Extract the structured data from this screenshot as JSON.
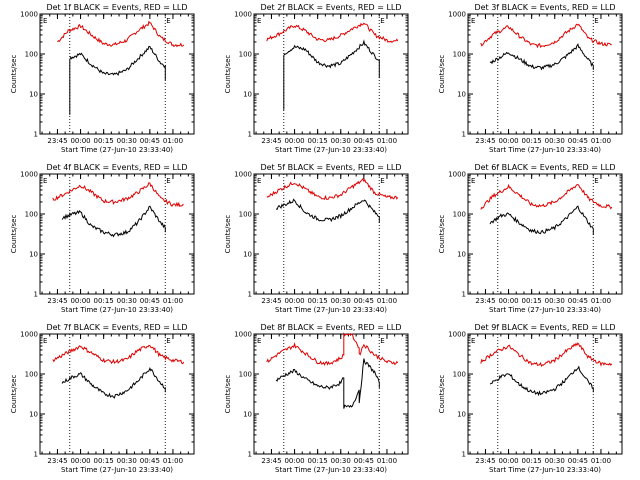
{
  "figure": {
    "colors": {
      "events": "#000000",
      "lld": "#dd0000",
      "axis": "#000000"
    }
  },
  "chart_data": [
    {
      "type": "line",
      "title": "Det 1f BLACK = Events, RED = LLD",
      "xlabel": "Start Time (27-Jun-10 23:33:40)",
      "ylabel": "Counts/sec",
      "yscale": "log",
      "ylim": [
        1,
        1000
      ],
      "x_ticks": [
        "23:45",
        "00:00",
        "00:15",
        "00:30",
        "00:45",
        "01:00"
      ],
      "y_ticks": [
        "1",
        "10",
        "100",
        "1000"
      ],
      "vlines": [
        "23:53",
        "00:55"
      ],
      "markers": [
        "E",
        "E"
      ],
      "series": [
        {
          "color": "red",
          "x": [
            "23:45",
            "23:52",
            "00:00",
            "00:07",
            "00:15",
            "00:22",
            "00:30",
            "00:37",
            "00:45",
            "00:52",
            "01:00",
            "01:07"
          ],
          "values": [
            200,
            380,
            500,
            300,
            180,
            170,
            220,
            380,
            600,
            260,
            170,
            170
          ]
        },
        {
          "color": "black",
          "x": [
            "23:53",
            "23:53",
            "00:00",
            "00:07",
            "00:15",
            "00:22",
            "00:30",
            "00:37",
            "00:45",
            "00:52",
            "00:55",
            "00:55"
          ],
          "values": [
            3,
            80,
            100,
            55,
            32,
            30,
            40,
            75,
            150,
            60,
            50,
            22
          ]
        }
      ]
    },
    {
      "type": "line",
      "title": "Det 2f BLACK = Events, RED = LLD",
      "xlabel": "Start Time (27-Jun-10 23:33:40)",
      "ylabel": "Counts/sec",
      "yscale": "log",
      "ylim": [
        1,
        1000
      ],
      "x_ticks": [
        "23:45",
        "00:00",
        "00:15",
        "00:30",
        "00:45",
        "01:00"
      ],
      "y_ticks": [
        "1",
        "10",
        "100",
        "1000"
      ],
      "vlines": [
        "23:53",
        "00:55"
      ],
      "markers": [
        "E",
        "E"
      ],
      "series": [
        {
          "color": "red",
          "x": [
            "23:42",
            "23:50",
            "00:00",
            "00:07",
            "00:15",
            "00:22",
            "00:30",
            "00:37",
            "00:45",
            "00:52",
            "01:00",
            "01:07"
          ],
          "values": [
            230,
            320,
            520,
            380,
            230,
            220,
            290,
            420,
            610,
            300,
            220,
            210
          ]
        },
        {
          "color": "black",
          "x": [
            "23:53",
            "23:53",
            "00:00",
            "00:07",
            "00:15",
            "00:22",
            "00:30",
            "00:37",
            "00:45",
            "00:52",
            "00:55",
            "00:55"
          ],
          "values": [
            4,
            100,
            150,
            130,
            62,
            50,
            58,
            100,
            190,
            90,
            70,
            25
          ]
        }
      ]
    },
    {
      "type": "line",
      "title": "Det 3f BLACK = Events, RED = LLD",
      "xlabel": "Start Time (27-Jun-10 23:33:40)",
      "ylabel": "Counts/sec",
      "yscale": "log",
      "ylim": [
        1,
        1000
      ],
      "x_ticks": [
        "23:45",
        "00:00",
        "00:15",
        "00:30",
        "00:45",
        "01:00"
      ],
      "y_ticks": [
        "1",
        "10",
        "100",
        "1000"
      ],
      "vlines": [
        "23:53",
        "00:55"
      ],
      "markers": [
        "E",
        "E"
      ],
      "series": [
        {
          "color": "red",
          "x": [
            "23:42",
            "23:50",
            "00:00",
            "00:07",
            "00:15",
            "00:22",
            "00:30",
            "00:37",
            "00:45",
            "00:52",
            "01:00",
            "01:07"
          ],
          "values": [
            170,
            310,
            480,
            280,
            170,
            160,
            200,
            330,
            560,
            240,
            180,
            170
          ]
        },
        {
          "color": "black",
          "x": [
            "23:48",
            "23:55",
            "00:00",
            "00:07",
            "00:15",
            "00:22",
            "00:30",
            "00:37",
            "00:45",
            "00:52",
            "00:55",
            "00:55"
          ],
          "values": [
            60,
            85,
            110,
            75,
            48,
            45,
            55,
            85,
            160,
            70,
            50,
            40
          ]
        }
      ]
    },
    {
      "type": "line",
      "title": "Det 4f BLACK = Events, RED = LLD",
      "xlabel": "Start Time (27-Jun-10 23:33:40)",
      "ylabel": "Counts/sec",
      "yscale": "log",
      "ylim": [
        1,
        1000
      ],
      "x_ticks": [
        "23:45",
        "00:00",
        "00:15",
        "00:30",
        "00:45",
        "01:00"
      ],
      "y_ticks": [
        "1",
        "10",
        "100",
        "1000"
      ],
      "vlines": [
        "23:53",
        "00:55"
      ],
      "markers": [
        "E",
        "E"
      ],
      "series": [
        {
          "color": "red",
          "x": [
            "23:42",
            "23:50",
            "00:00",
            "00:07",
            "00:15",
            "00:22",
            "00:30",
            "00:37",
            "00:45",
            "00:52",
            "01:00",
            "01:07"
          ],
          "values": [
            230,
            320,
            520,
            350,
            210,
            200,
            240,
            340,
            580,
            240,
            170,
            170
          ]
        },
        {
          "color": "black",
          "x": [
            "23:48",
            "23:55",
            "00:00",
            "00:07",
            "00:15",
            "00:22",
            "00:30",
            "00:37",
            "00:45",
            "00:52",
            "00:55",
            "00:55"
          ],
          "values": [
            80,
            100,
            110,
            50,
            35,
            30,
            35,
            60,
            150,
            60,
            45,
            35
          ]
        }
      ]
    },
    {
      "type": "line",
      "title": "Det 5f BLACK = Events, RED = LLD",
      "xlabel": "Start Time (27-Jun-10 23:33:40)",
      "ylabel": "Counts/sec",
      "yscale": "log",
      "ylim": [
        1,
        1000
      ],
      "x_ticks": [
        "23:45",
        "00:00",
        "00:15",
        "00:30",
        "00:45",
        "01:00"
      ],
      "y_ticks": [
        "1",
        "10",
        "100",
        "1000"
      ],
      "vlines": [
        "23:53",
        "00:55"
      ],
      "markers": [
        "E",
        "E"
      ],
      "series": [
        {
          "color": "red",
          "x": [
            "23:42",
            "23:50",
            "00:00",
            "00:07",
            "00:15",
            "00:22",
            "00:30",
            "00:37",
            "00:45",
            "00:52",
            "01:00",
            "01:07"
          ],
          "values": [
            260,
            400,
            620,
            420,
            270,
            250,
            300,
            470,
            720,
            340,
            260,
            260
          ]
        },
        {
          "color": "black",
          "x": [
            "23:48",
            "23:55",
            "00:00",
            "00:07",
            "00:15",
            "00:22",
            "00:30",
            "00:37",
            "00:45",
            "00:52",
            "00:55",
            "00:55"
          ],
          "values": [
            140,
            180,
            220,
            110,
            75,
            70,
            90,
            140,
            230,
            110,
            85,
            60
          ]
        }
      ]
    },
    {
      "type": "line",
      "title": "Det 6f BLACK = Events, RED = LLD",
      "xlabel": "Start Time (27-Jun-10 23:33:40)",
      "ylabel": "Counts/sec",
      "yscale": "log",
      "ylim": [
        1,
        1000
      ],
      "x_ticks": [
        "23:45",
        "00:00",
        "00:15",
        "00:30",
        "00:45",
        "01:00"
      ],
      "y_ticks": [
        "1",
        "10",
        "100",
        "1000"
      ],
      "vlines": [
        "23:53",
        "00:55"
      ],
      "markers": [
        "E",
        "E"
      ],
      "series": [
        {
          "color": "red",
          "x": [
            "23:42",
            "23:50",
            "00:00",
            "00:07",
            "00:15",
            "00:22",
            "00:30",
            "00:37",
            "00:45",
            "00:52",
            "01:00",
            "01:07"
          ],
          "values": [
            140,
            280,
            480,
            300,
            170,
            160,
            200,
            320,
            560,
            240,
            160,
            150
          ]
        },
        {
          "color": "black",
          "x": [
            "23:48",
            "23:55",
            "00:00",
            "00:07",
            "00:15",
            "00:22",
            "00:30",
            "00:37",
            "00:45",
            "00:52",
            "00:55",
            "00:55"
          ],
          "values": [
            60,
            90,
            100,
            60,
            38,
            35,
            45,
            75,
            150,
            60,
            42,
            30
          ]
        }
      ]
    },
    {
      "type": "line",
      "title": "Det 7f BLACK = Events, RED = LLD",
      "xlabel": "Start Time (27-Jun-10 23:33:40)",
      "ylabel": "Counts/sec",
      "yscale": "log",
      "ylim": [
        1,
        1000
      ],
      "x_ticks": [
        "23:45",
        "00:00",
        "00:15",
        "00:30",
        "00:45",
        "01:00"
      ],
      "y_ticks": [
        "1",
        "10",
        "100",
        "1000"
      ],
      "vlines": [
        "23:53",
        "00:55"
      ],
      "markers": [
        "E",
        "E"
      ],
      "series": [
        {
          "color": "red",
          "x": [
            "23:42",
            "23:50",
            "00:00",
            "00:07",
            "00:15",
            "00:22",
            "00:30",
            "00:37",
            "00:45",
            "00:52",
            "01:00",
            "01:07"
          ],
          "values": [
            220,
            320,
            500,
            340,
            220,
            200,
            230,
            380,
            540,
            280,
            220,
            200
          ]
        },
        {
          "color": "black",
          "x": [
            "23:48",
            "23:55",
            "00:00",
            "00:07",
            "00:15",
            "00:22",
            "00:30",
            "00:37",
            "00:45",
            "00:52",
            "00:55",
            "00:55"
          ],
          "values": [
            60,
            85,
            100,
            55,
            32,
            28,
            38,
            65,
            140,
            60,
            45,
            35
          ]
        }
      ]
    },
    {
      "type": "line",
      "title": "Det 8f BLACK = Events, RED = LLD",
      "xlabel": "Start Time (27-Jun-10 23:33:40)",
      "ylabel": "Counts/sec",
      "yscale": "log",
      "ylim": [
        1,
        1000
      ],
      "x_ticks": [
        "23:45",
        "00:00",
        "00:15",
        "00:30",
        "00:45",
        "01:00"
      ],
      "y_ticks": [
        "1",
        "10",
        "100",
        "1000"
      ],
      "vlines": [
        "23:53",
        "00:55"
      ],
      "markers": [
        "E",
        "E"
      ],
      "series": [
        {
          "color": "red",
          "x": [
            "23:42",
            "23:50",
            "00:00",
            "00:07",
            "00:15",
            "00:22",
            "00:30",
            "00:32",
            "00:32",
            "00:37",
            "00:42",
            "00:42",
            "00:45",
            "00:52",
            "01:00",
            "01:07"
          ],
          "values": [
            200,
            330,
            520,
            330,
            200,
            180,
            250,
            300,
            1000,
            1000,
            450,
            300,
            550,
            300,
            200,
            190
          ]
        },
        {
          "color": "black",
          "x": [
            "23:48",
            "23:55",
            "00:00",
            "00:07",
            "00:15",
            "00:22",
            "00:30",
            "00:32",
            "00:32",
            "00:37",
            "00:42",
            "00:42",
            "00:45",
            "00:52",
            "00:55",
            "00:55"
          ],
          "values": [
            70,
            100,
            120,
            75,
            50,
            45,
            60,
            80,
            15,
            15,
            40,
            20,
            220,
            110,
            60,
            45
          ]
        }
      ]
    },
    {
      "type": "line",
      "title": "Det 9f BLACK = Events, RED = LLD",
      "xlabel": "Start Time (27-Jun-10 23:33:40)",
      "ylabel": "Counts/sec",
      "yscale": "log",
      "ylim": [
        1,
        1000
      ],
      "x_ticks": [
        "23:45",
        "00:00",
        "00:15",
        "00:30",
        "00:45",
        "01:00"
      ],
      "y_ticks": [
        "1",
        "10",
        "100",
        "1000"
      ],
      "vlines": [
        "23:53",
        "00:55"
      ],
      "markers": [
        "E",
        "E"
      ],
      "series": [
        {
          "color": "red",
          "x": [
            "23:42",
            "23:50",
            "00:00",
            "00:07",
            "00:15",
            "00:22",
            "00:30",
            "00:37",
            "00:45",
            "00:52",
            "01:00",
            "01:07"
          ],
          "values": [
            200,
            330,
            500,
            300,
            180,
            170,
            220,
            360,
            580,
            260,
            180,
            180
          ]
        },
        {
          "color": "black",
          "x": [
            "23:48",
            "23:55",
            "00:00",
            "00:07",
            "00:15",
            "00:22",
            "00:30",
            "00:37",
            "00:45",
            "00:52",
            "00:55",
            "00:55"
          ],
          "values": [
            55,
            85,
            100,
            55,
            35,
            32,
            42,
            70,
            150,
            60,
            45,
            35
          ]
        }
      ]
    }
  ]
}
